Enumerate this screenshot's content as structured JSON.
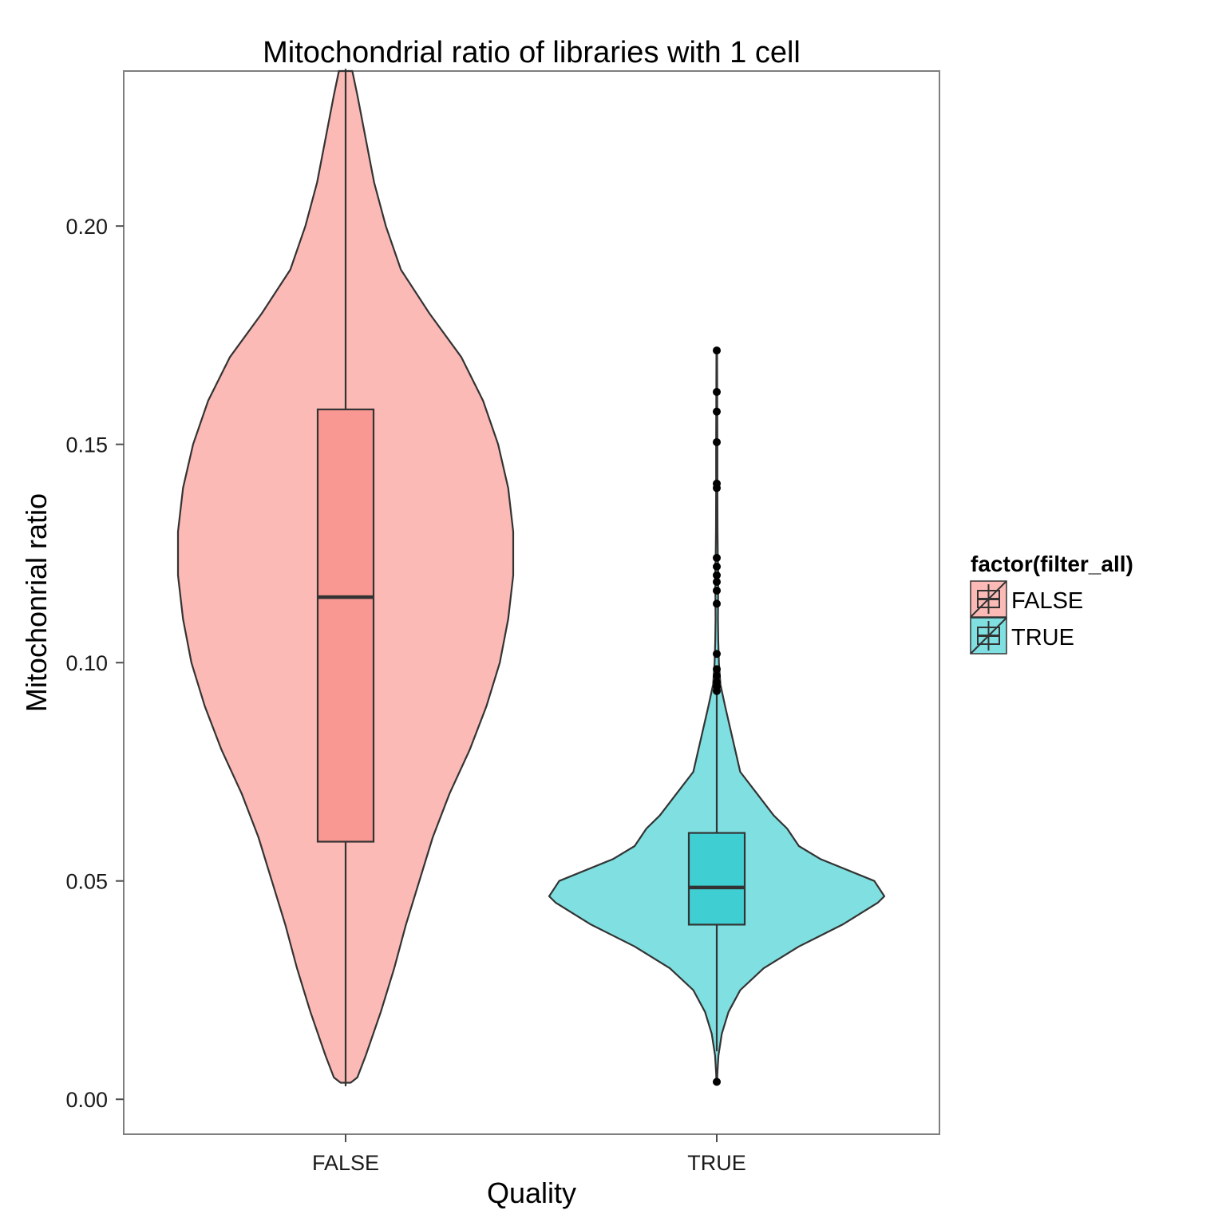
{
  "chart_data": {
    "type": "violin",
    "title": "Mitochondrial ratio of libraries with 1 cell",
    "xlabel": "Quality",
    "ylabel": "Mitochonrial ratio",
    "categories": [
      "FALSE",
      "TRUE"
    ],
    "ylim": [
      -0.008,
      0.2355
    ],
    "yticks": [
      0.0,
      0.05,
      0.1,
      0.15,
      0.2
    ],
    "ytick_labels": [
      "0.00",
      "0.05",
      "0.10",
      "0.15",
      "0.20"
    ],
    "grid": false,
    "legend": {
      "title": "factor(filter_all)",
      "position": "right",
      "entries": [
        "FALSE",
        "TRUE"
      ]
    },
    "series": [
      {
        "name": "FALSE",
        "color": "#F8766D",
        "box": {
          "q1": 0.059,
          "median": 0.115,
          "q3": 0.158,
          "whisker_low": 0.003,
          "whisker_high": 0.236
        },
        "outliers": [],
        "density": [
          [
            0.0038,
            0.03
          ],
          [
            0.005,
            0.07
          ],
          [
            0.01,
            0.12
          ],
          [
            0.02,
            0.21
          ],
          [
            0.03,
            0.29
          ],
          [
            0.04,
            0.36
          ],
          [
            0.05,
            0.44
          ],
          [
            0.06,
            0.52
          ],
          [
            0.07,
            0.62
          ],
          [
            0.08,
            0.74
          ],
          [
            0.09,
            0.84
          ],
          [
            0.1,
            0.92
          ],
          [
            0.11,
            0.97
          ],
          [
            0.12,
            1.0
          ],
          [
            0.13,
            1.0
          ],
          [
            0.14,
            0.97
          ],
          [
            0.15,
            0.91
          ],
          [
            0.16,
            0.82
          ],
          [
            0.17,
            0.69
          ],
          [
            0.18,
            0.5
          ],
          [
            0.19,
            0.33
          ],
          [
            0.2,
            0.24
          ],
          [
            0.21,
            0.17
          ],
          [
            0.22,
            0.12
          ],
          [
            0.23,
            0.07
          ],
          [
            0.2355,
            0.04
          ]
        ]
      },
      {
        "name": "TRUE",
        "color": "#00BFC4",
        "box": {
          "q1": 0.04,
          "median": 0.0485,
          "q3": 0.061,
          "whisker_low": 0.011,
          "whisker_high": 0.094
        },
        "outliers": [
          0.004,
          0.0935,
          0.0945,
          0.0955,
          0.097,
          0.0985,
          0.102,
          0.1135,
          0.1165,
          0.1185,
          0.12,
          0.122,
          0.124,
          0.14,
          0.141,
          0.1505,
          0.1575,
          0.162,
          0.1715
        ],
        "density": [
          [
            0.0038,
            0.002
          ],
          [
            0.006,
            0.004
          ],
          [
            0.01,
            0.01
          ],
          [
            0.015,
            0.03
          ],
          [
            0.02,
            0.07
          ],
          [
            0.025,
            0.14
          ],
          [
            0.03,
            0.28
          ],
          [
            0.035,
            0.49
          ],
          [
            0.04,
            0.75
          ],
          [
            0.045,
            0.96
          ],
          [
            0.0465,
            1.0
          ],
          [
            0.05,
            0.94
          ],
          [
            0.055,
            0.62
          ],
          [
            0.058,
            0.49
          ],
          [
            0.062,
            0.42
          ],
          [
            0.065,
            0.34
          ],
          [
            0.07,
            0.24
          ],
          [
            0.075,
            0.14
          ],
          [
            0.08,
            0.11
          ],
          [
            0.085,
            0.08
          ],
          [
            0.09,
            0.05
          ],
          [
            0.095,
            0.022
          ],
          [
            0.1,
            0.013
          ],
          [
            0.105,
            0.009
          ],
          [
            0.11,
            0.007
          ],
          [
            0.115,
            0.008
          ],
          [
            0.12,
            0.009
          ],
          [
            0.125,
            0.006
          ],
          [
            0.13,
            0.005
          ],
          [
            0.14,
            0.004
          ],
          [
            0.15,
            0.004
          ],
          [
            0.16,
            0.003
          ],
          [
            0.1715,
            0.002
          ]
        ]
      }
    ]
  }
}
